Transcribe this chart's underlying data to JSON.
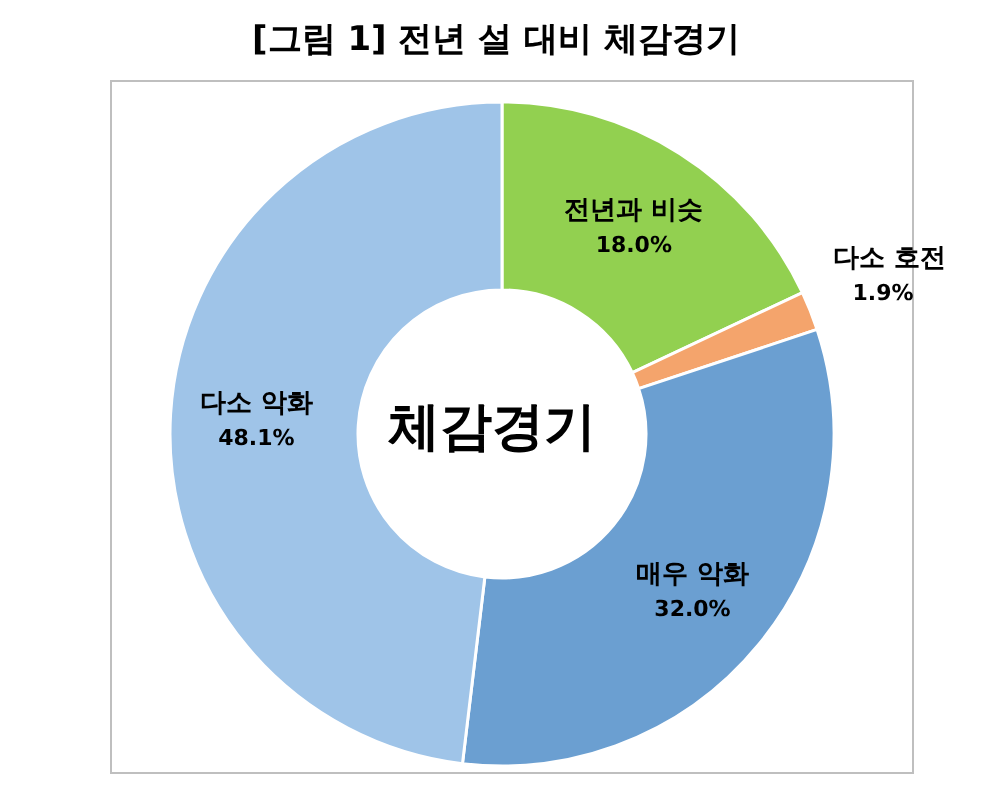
{
  "chart_data": {
    "type": "donut",
    "title": "[그림 1] 전년 설 대비 체감경기",
    "categories": [
      "전년과 비슷",
      "다소 호전",
      "매우 악화",
      "다소 악화"
    ],
    "values": [
      18.0,
      1.9,
      32.0,
      48.1
    ],
    "value_labels": [
      "18.0%",
      "1.9%",
      "32.0%",
      "48.1%"
    ],
    "colors": [
      "#92d050",
      "#f4a46c",
      "#6b9fd1",
      "#9fc4e8"
    ],
    "annotations": [
      "체감경기"
    ]
  }
}
